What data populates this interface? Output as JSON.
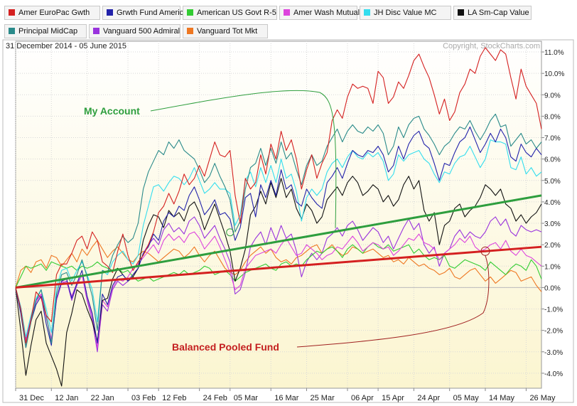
{
  "legend": [
    {
      "name": "Amer EuroPac Gwth",
      "color": "#d42020"
    },
    {
      "name": "Grwth Fund America",
      "color": "#2222aa"
    },
    {
      "name": "American US Govt R-5",
      "color": "#33cc33"
    },
    {
      "name": "Amer Wash Mutual",
      "color": "#dd44dd"
    },
    {
      "name": "JH Disc Value MC",
      "color": "#33ddee"
    },
    {
      "name": "LA Sm-Cap Value",
      "color": "#111111"
    },
    {
      "name": "Principal MidCap",
      "color": "#2a8a8a"
    },
    {
      "name": "Vanguard 500 Admiral",
      "color": "#9933dd"
    },
    {
      "name": "Vanguard Tot Mkt",
      "color": "#ee7722"
    }
  ],
  "header": {
    "date_range": "31 December 2014 - 05 June 2015",
    "copyright": "Copyright, StockCharts.com"
  },
  "annotations": {
    "my_account": "My Account",
    "balanced_fund": "Balanced Pooled Fund"
  },
  "chart_data": {
    "type": "line",
    "title": "",
    "xlabel": "",
    "ylabel": "",
    "ylim": [
      -4.7,
      11.5
    ],
    "y_ticks": [
      11,
      10,
      9,
      8,
      7,
      6,
      5,
      4,
      3,
      2,
      1,
      0,
      -1,
      -2,
      -3,
      -4
    ],
    "y_tick_labels": [
      "11.0%",
      "10.0%",
      "9.0%",
      "8.0%",
      "7.0%",
      "6.0%",
      "5.0%",
      "4.0%",
      "3.0%",
      "2.0%",
      "1.0%",
      "0.0%",
      "-1.0%",
      "-2.0%",
      "-3.0%",
      "-4.0%"
    ],
    "x_tick_labels": [
      "31 Dec",
      "12 Jan",
      "22 Jan",
      "03 Feb",
      "12 Feb",
      "24 Feb",
      "05 Mar",
      "16 Mar",
      "25 Mar",
      "06 Apr",
      "15 Apr",
      "24 Apr",
      "05 May",
      "14 May",
      "26 May"
    ],
    "x_tick_index": [
      0,
      7,
      14,
      22,
      28,
      36,
      42,
      50,
      57,
      65,
      71,
      78,
      85,
      92,
      100
    ],
    "grid": true,
    "legend_position": "top",
    "series": [
      {
        "name": "Amer EuroPac Gwth",
        "color": "#d42020",
        "values": [
          0,
          -1.0,
          -2.6,
          -1.5,
          -0.2,
          -0.5,
          -1.3,
          -1.6,
          0.6,
          1.1,
          1.1,
          1.6,
          2.2,
          2.4,
          1.8,
          2.6,
          2.2,
          1.2,
          1.0,
          0.7,
          1.7,
          2.5,
          1.5,
          0.8,
          1.2,
          1.5,
          2.0,
          2.6,
          3.5,
          3.8,
          4.4,
          3.9,
          4.5,
          5.3,
          4.8,
          5.1,
          5.7,
          5.2,
          6.0,
          6.8,
          6.2,
          6.1,
          6.4,
          4.3,
          3.0,
          5.1,
          4.6,
          4.9,
          6.2,
          5.3,
          6.7,
          6.0,
          7.3,
          6.4,
          6.9,
          6.0,
          4.6,
          5.5,
          6.2,
          5.1,
          5.8,
          6.3,
          7.8,
          8.3,
          7.9,
          8.9,
          9.5,
          9.3,
          9.4,
          9.3,
          8.6,
          10.1,
          9.8,
          8.6,
          8.9,
          9.6,
          9.3,
          9.9,
          10.6,
          10.9,
          10.3,
          9.8,
          9.0,
          8.1,
          8.8,
          7.8,
          8.2,
          9.1,
          9.5,
          10.2,
          10.0,
          10.8,
          11.2,
          10.9,
          10.6,
          11.1,
          10.9,
          9.8,
          8.8,
          10.2,
          9.4,
          9.0,
          8.6,
          7.4
        ]
      },
      {
        "name": "Grwth Fund America",
        "color": "#2222aa",
        "values": [
          0,
          -1.2,
          -2.8,
          -1.6,
          -0.8,
          -0.4,
          -1.7,
          -2.7,
          -0.5,
          0.3,
          0.4,
          -0.5,
          0.2,
          0.8,
          -0.4,
          -1.2,
          -2.6,
          -0.3,
          -0.8,
          0.1,
          0.5,
          0.6,
          0.3,
          0.6,
          0.9,
          1.6,
          1.9,
          2.5,
          2.2,
          3.1,
          3.5,
          3.3,
          3.8,
          3.6,
          4.3,
          4.7,
          4.1,
          3.4,
          3.7,
          4.1,
          3.4,
          3.5,
          3.2,
          2.2,
          2.8,
          4.2,
          4.4,
          3.3,
          4.8,
          4.2,
          5.0,
          4.3,
          5.5,
          4.6,
          4.8,
          4.0,
          3.8,
          4.6,
          4.2,
          3.9,
          3.7,
          4.9,
          5.2,
          5.6,
          5.1,
          5.8,
          6.4,
          6.2,
          6.1,
          6.4,
          6.3,
          6.6,
          6.2,
          5.4,
          5.7,
          6.6,
          6.0,
          6.7,
          7.1,
          7.3,
          6.7,
          6.5,
          5.8,
          5.0,
          5.8,
          5.7,
          6.3,
          6.8,
          7.0,
          7.5,
          6.9,
          6.3,
          6.7,
          7.2,
          6.8,
          7.4,
          7.0,
          6.1,
          5.9,
          6.7,
          6.3,
          6.1,
          6.5,
          6.2
        ]
      },
      {
        "name": "American US Govt R-5",
        "color": "#33cc33",
        "values": [
          0,
          0.5,
          1.0,
          0.9,
          1.0,
          1.1,
          0.8,
          1.2,
          1.1,
          1.0,
          0.9,
          1.0,
          0.8,
          1.0,
          0.9,
          1.0,
          1.2,
          1.0,
          0.9,
          0.8,
          0.9,
          0.7,
          0.8,
          0.5,
          0.3,
          0.4,
          0.5,
          0.3,
          0.4,
          0.5,
          0.6,
          0.7,
          0.6,
          0.8,
          0.6,
          0.7,
          0.8,
          1.0,
          0.9,
          0.6,
          0.7,
          0.8,
          0.6,
          0.3,
          0.5,
          0.7,
          0.8,
          0.9,
          1.0,
          1.1,
          0.9,
          0.8,
          1.1,
          1.2,
          1.0,
          1.1,
          1.0,
          1.3,
          1.5,
          1.7,
          1.6,
          1.8,
          1.9,
          1.7,
          1.4,
          1.8,
          2.0,
          1.8,
          1.6,
          1.9,
          2.1,
          1.9,
          1.8,
          2.0,
          1.7,
          1.8,
          1.9,
          2.0,
          1.6,
          1.8,
          1.5,
          1.3,
          1.4,
          1.3,
          1.5,
          1.0,
          0.9,
          1.1,
          1.3,
          1.2,
          1.1,
          1.0,
          0.8,
          1.2,
          1.0,
          0.8,
          0.6,
          0.9,
          1.1,
          1.0,
          0.8,
          1.3,
          1.0,
          0.4
        ]
      },
      {
        "name": "Amer Wash Mutual",
        "color": "#dd44dd",
        "values": [
          0,
          -1.0,
          -2.5,
          -1.5,
          -0.7,
          -0.3,
          -1.4,
          -2.4,
          -0.6,
          0.3,
          0.2,
          -0.4,
          0.2,
          0.6,
          -0.5,
          -1.3,
          -2.8,
          -0.6,
          -0.9,
          0.0,
          0.4,
          0.3,
          0.5,
          0.9,
          1.1,
          1.4,
          1.7,
          2.0,
          1.6,
          2.2,
          2.5,
          2.2,
          2.4,
          2.1,
          2.5,
          2.6,
          2.3,
          1.8,
          2.1,
          2.4,
          1.9,
          1.3,
          0.7,
          -0.1,
          0.1,
          0.9,
          1.2,
          1.5,
          1.6,
          1.7,
          1.8,
          1.6,
          2.0,
          2.3,
          1.9,
          1.5,
          1.6,
          2.0,
          1.8,
          1.6,
          1.3,
          1.5,
          1.6,
          1.9,
          1.8,
          2.1,
          2.4,
          2.1,
          1.7,
          1.9,
          2.1,
          2.0,
          1.8,
          1.9,
          1.5,
          1.7,
          2.0,
          2.3,
          2.2,
          2.5,
          2.1,
          2.0,
          1.8,
          1.3,
          1.6,
          1.8,
          2.0,
          2.3,
          2.1,
          2.4,
          1.9,
          1.7,
          1.8,
          2.0,
          2.1,
          1.8,
          2.2,
          1.7,
          1.5,
          1.8,
          1.5,
          1.4,
          1.2,
          1.0
        ]
      },
      {
        "name": "JH Disc Value MC",
        "color": "#33ddee",
        "values": [
          0,
          -0.9,
          -2.3,
          -1.3,
          -0.5,
          -0.1,
          -1.0,
          -2.1,
          0.0,
          0.8,
          0.9,
          0.3,
          0.8,
          1.2,
          0.6,
          -0.1,
          -1.6,
          0.8,
          0.6,
          1.2,
          1.5,
          1.7,
          1.3,
          1.1,
          1.5,
          2.9,
          3.8,
          4.7,
          4.8,
          4.5,
          4.9,
          5.2,
          5.1,
          4.8,
          5.1,
          5.6,
          5.0,
          4.4,
          4.6,
          4.9,
          4.6,
          4.6,
          4.4,
          2.9,
          3.4,
          5.0,
          5.4,
          4.7,
          5.6,
          4.9,
          5.7,
          4.9,
          6.0,
          5.1,
          5.3,
          4.5,
          3.1,
          4.2,
          4.6,
          4.3,
          4.6,
          5.4,
          5.8,
          6.0,
          5.6,
          6.1,
          6.4,
          6.1,
          6.0,
          6.3,
          6.1,
          6.3,
          5.9,
          5.0,
          5.3,
          6.2,
          5.9,
          6.2,
          6.3,
          6.4,
          6.0,
          5.8,
          5.3,
          4.9,
          5.4,
          5.3,
          5.8,
          6.1,
          6.2,
          6.6,
          6.1,
          5.6,
          6.0,
          6.9,
          6.8,
          6.8,
          6.7,
          5.6,
          5.5,
          6.1,
          5.3,
          5.6,
          5.2,
          5.4
        ]
      },
      {
        "name": "LA Sm-Cap Value",
        "color": "#111111",
        "values": [
          0,
          -2.0,
          -4.1,
          -2.7,
          -1.5,
          -1.1,
          -2.6,
          -3.2,
          -3.8,
          -4.6,
          -2.1,
          -1.2,
          -0.1,
          -0.3,
          -1.0,
          -1.6,
          -2.5,
          -0.6,
          -0.5,
          0.4,
          0.9,
          0.6,
          0.3,
          0.5,
          0.9,
          2.2,
          2.9,
          3.4,
          3.3,
          2.8,
          3.6,
          3.3,
          3.5,
          3.1,
          3.8,
          4.0,
          3.5,
          2.7,
          3.3,
          3.9,
          3.2,
          2.5,
          1.7,
          0.3,
          0.9,
          1.8,
          3.4,
          3.8,
          4.5,
          3.9,
          4.9,
          4.2,
          5.1,
          4.2,
          4.6,
          3.7,
          3.2,
          3.9,
          3.6,
          3.0,
          3.3,
          4.1,
          4.4,
          4.7,
          4.3,
          4.9,
          5.2,
          4.9,
          4.3,
          4.5,
          4.8,
          4.6,
          4.0,
          4.3,
          3.8,
          4.1,
          4.8,
          5.2,
          4.6,
          5.0,
          3.6,
          3.1,
          3.5,
          2.0,
          2.9,
          3.1,
          3.7,
          3.9,
          3.3,
          3.6,
          3.8,
          4.2,
          4.8,
          4.6,
          4.3,
          4.6,
          3.9,
          3.7,
          3.1,
          3.4,
          3.0,
          3.3,
          3.5,
          3.9
        ]
      },
      {
        "name": "Principal MidCap",
        "color": "#2a8a8a",
        "values": [
          0,
          -1.0,
          -2.8,
          -1.6,
          -0.6,
          -0.1,
          -1.3,
          -2.6,
          -0.3,
          0.6,
          0.7,
          0.1,
          0.6,
          1.3,
          0.5,
          -0.4,
          -2.0,
          0.8,
          0.7,
          1.5,
          2.0,
          2.4,
          2.1,
          2.3,
          3.0,
          4.6,
          5.4,
          5.9,
          6.4,
          6.2,
          6.8,
          6.5,
          6.9,
          6.4,
          6.2,
          6.0,
          5.5,
          4.9,
          5.2,
          5.8,
          5.2,
          4.7,
          4.1,
          2.6,
          3.1,
          4.6,
          5.6,
          5.8,
          6.5,
          5.7,
          6.5,
          5.8,
          6.8,
          6.0,
          6.3,
          5.5,
          4.8,
          5.7,
          6.2,
          5.7,
          5.9,
          6.6,
          7.0,
          7.4,
          6.8,
          7.3,
          7.6,
          7.3,
          7.2,
          7.5,
          7.3,
          7.6,
          7.2,
          6.2,
          6.6,
          7.5,
          7.0,
          7.6,
          7.9,
          8.0,
          7.4,
          7.1,
          6.7,
          6.2,
          6.6,
          6.8,
          7.2,
          7.5,
          7.4,
          7.8,
          7.3,
          6.9,
          7.3,
          7.8,
          8.1,
          7.5,
          7.6,
          6.6,
          6.9,
          7.2,
          6.7,
          6.9,
          6.5,
          6.8
        ]
      },
      {
        "name": "Vanguard 500 Admiral",
        "color": "#9933dd",
        "values": [
          0,
          -0.9,
          -2.4,
          -1.4,
          -0.6,
          -0.3,
          -1.3,
          -2.6,
          -0.6,
          0.2,
          0.3,
          -0.6,
          0.1,
          0.6,
          -0.6,
          -1.5,
          -3.0,
          -0.8,
          -1.1,
          -0.1,
          0.3,
          0.1,
          0.3,
          0.6,
          0.9,
          1.6,
          2.0,
          2.3,
          2.0,
          2.7,
          3.0,
          2.6,
          2.8,
          2.5,
          3.1,
          3.3,
          2.9,
          2.3,
          2.6,
          2.9,
          2.3,
          1.8,
          1.2,
          -0.3,
          -0.1,
          0.7,
          1.9,
          2.3,
          2.6,
          2.0,
          2.8,
          2.2,
          2.9,
          2.3,
          2.5,
          1.7,
          0.5,
          1.2,
          1.6,
          1.3,
          1.6,
          2.3,
          2.5,
          2.8,
          2.4,
          2.9,
          3.1,
          2.7,
          2.2,
          2.5,
          2.8,
          2.6,
          2.1,
          2.4,
          1.8,
          2.3,
          2.8,
          3.2,
          2.7,
          3.0,
          2.0,
          1.6,
          1.9,
          1.0,
          1.6,
          1.8,
          2.4,
          2.7,
          2.3,
          2.6,
          2.4,
          2.3,
          2.6,
          3.1,
          3.3,
          2.9,
          3.2,
          2.6,
          2.4,
          2.9,
          2.7,
          2.6,
          2.7,
          2.6
        ]
      },
      {
        "name": "Vanguard Tot Mkt",
        "color": "#ee7722",
        "values": [
          0,
          0.8,
          1.0,
          0.7,
          1.2,
          1.3,
          0.9,
          1.5,
          1.4,
          1.0,
          1.3,
          1.6,
          1.2,
          1.8,
          1.5,
          1.9,
          2.2,
          1.8,
          1.4,
          1.7,
          1.9,
          1.6,
          1.3,
          1.2,
          1.5,
          1.7,
          1.6,
          1.4,
          1.2,
          1.4,
          1.6,
          1.8,
          1.7,
          1.4,
          1.6,
          1.9,
          1.5,
          1.2,
          1.5,
          1.7,
          1.3,
          0.9,
          0.7,
          0.6,
          0.8,
          1.2,
          1.5,
          1.7,
          1.9,
          1.6,
          1.8,
          1.4,
          1.2,
          1.3,
          1.1,
          1.4,
          1.5,
          1.7,
          1.9,
          2.0,
          1.6,
          1.8,
          2.0,
          1.7,
          1.5,
          1.6,
          1.9,
          1.8,
          1.6,
          1.7,
          1.8,
          1.6,
          1.4,
          1.5,
          1.2,
          1.3,
          1.1,
          1.4,
          1.2,
          1.0,
          1.1,
          0.9,
          0.8,
          0.6,
          0.7,
          0.9,
          0.5,
          0.4,
          0.6,
          0.8,
          0.9,
          0.6,
          0.3,
          0.5,
          0.2,
          0.4,
          0.6,
          0.8,
          0.7,
          0.3,
          0.4,
          0.5,
          0.1,
          -0.2
        ]
      }
    ],
    "trendlines": [
      {
        "label": "My Account",
        "color": "#2e9e3e",
        "from": [
          0,
          0.0
        ],
        "to": [
          103,
          4.3
        ]
      },
      {
        "label": "Balanced Pooled Fund",
        "color": "#d42020",
        "from": [
          0,
          0.0
        ],
        "to": [
          103,
          1.9
        ]
      }
    ]
  }
}
